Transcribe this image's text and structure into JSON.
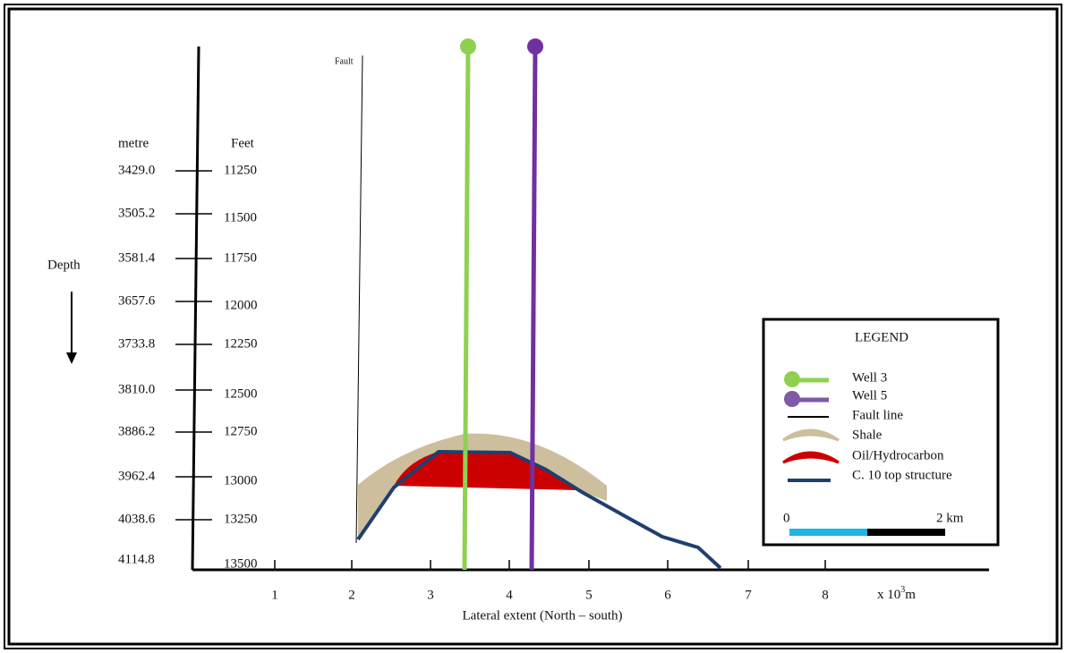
{
  "fault_label": "Fault",
  "axes": {
    "depth_label": "Depth",
    "metre_header": "metre",
    "feet_header": "Feet",
    "depth_ticks": [
      {
        "metre": "3429.0",
        "feet": "11250"
      },
      {
        "metre": "3505.2",
        "feet": "11500"
      },
      {
        "metre": "3581.4",
        "feet": "11750"
      },
      {
        "metre": "3657.6",
        "feet": "12000"
      },
      {
        "metre": "3733.8",
        "feet": "12250"
      },
      {
        "metre": "3810.0",
        "feet": "12500"
      },
      {
        "metre": "3886.2",
        "feet": "12750"
      },
      {
        "metre": "3962.4",
        "feet": "13000"
      },
      {
        "metre": "4038.6",
        "feet": "13250"
      },
      {
        "metre": "4114.8",
        "feet": "13500"
      }
    ],
    "x_ticks": [
      "1",
      "2",
      "3",
      "4",
      "5",
      "6",
      "7",
      "8"
    ],
    "x_unit": "x 10",
    "x_unit_sup": "3",
    "x_unit_end": "m",
    "x_label": "Lateral extent (North – south)"
  },
  "legend": {
    "title": "LEGEND",
    "items": [
      "Well 3",
      "Well 5",
      "Fault line",
      "Shale",
      "Oil/Hydrocarbon",
      "C. 10 top structure"
    ],
    "scale_start": "0",
    "scale_end": "2 km"
  }
}
